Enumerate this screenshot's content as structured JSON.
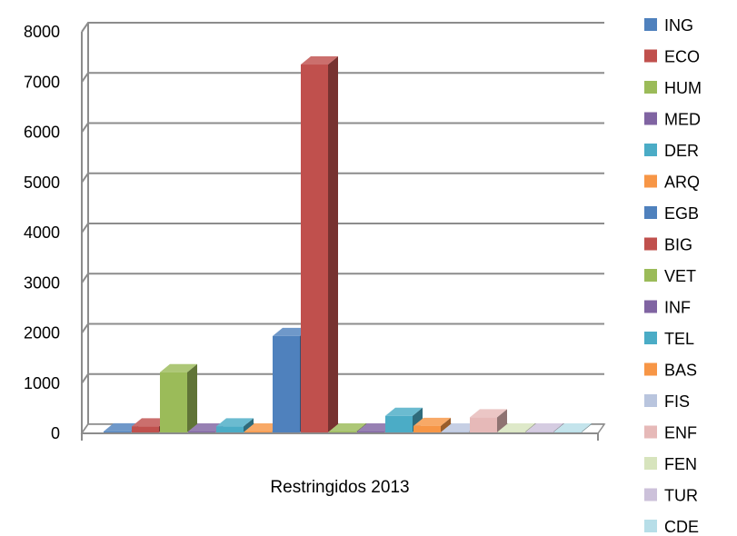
{
  "chart_data": {
    "type": "bar",
    "style": "3d-clustered-column",
    "categories": [
      "Restringidos 2013"
    ],
    "series": [
      {
        "name": "ING",
        "values": [
          20
        ],
        "color": "#4F81BD"
      },
      {
        "name": "ECO",
        "values": [
          120
        ],
        "color": "#C0504D"
      },
      {
        "name": "HUM",
        "values": [
          1200
        ],
        "color": "#9BBB59"
      },
      {
        "name": "MED",
        "values": [
          5
        ],
        "color": "#8064A2"
      },
      {
        "name": "DER",
        "values": [
          120
        ],
        "color": "#4BACC6"
      },
      {
        "name": "ARQ",
        "values": [
          5
        ],
        "color": "#F79646"
      },
      {
        "name": "EGB",
        "values": [
          1920
        ],
        "color": "#4F81BD"
      },
      {
        "name": "BIG",
        "values": [
          7330
        ],
        "color": "#C0504D"
      },
      {
        "name": "VET",
        "values": [
          10
        ],
        "color": "#9BBB59"
      },
      {
        "name": "INF",
        "values": [
          10
        ],
        "color": "#8064A2"
      },
      {
        "name": "TEL",
        "values": [
          330
        ],
        "color": "#4BACC6"
      },
      {
        "name": "BAS",
        "values": [
          130
        ],
        "color": "#F79646"
      },
      {
        "name": "FIS",
        "values": [
          5
        ],
        "color": "#B9C5DE"
      },
      {
        "name": "ENF",
        "values": [
          300
        ],
        "color": "#E6B9B8"
      },
      {
        "name": "FEN",
        "values": [
          5
        ],
        "color": "#D7E4BD"
      },
      {
        "name": "TUR",
        "values": [
          5
        ],
        "color": "#CCC1DA"
      },
      {
        "name": "CDE",
        "values": [
          5
        ],
        "color": "#B7DEE8"
      }
    ],
    "yticks": [
      "0",
      "1000",
      "2000",
      "3000",
      "4000",
      "5000",
      "6000",
      "7000",
      "8000"
    ],
    "ylim": [
      0,
      8000
    ],
    "grid": true,
    "legend": "right",
    "title": "",
    "xlabel": "",
    "ylabel": ""
  }
}
